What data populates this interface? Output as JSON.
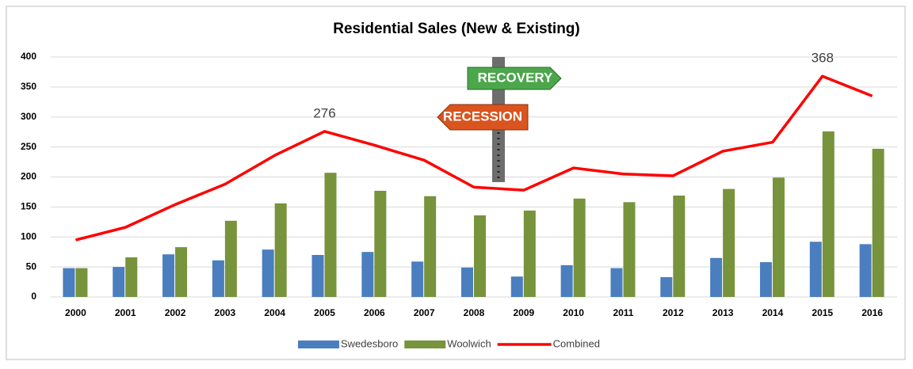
{
  "chart_data": {
    "type": "bar-line",
    "title": "Residential Sales (New & Existing)",
    "categories": [
      "2000",
      "2001",
      "2002",
      "2003",
      "2004",
      "2005",
      "2006",
      "2007",
      "2008",
      "2009",
      "2010",
      "2011",
      "2012",
      "2013",
      "2014",
      "2015",
      "2016"
    ],
    "series": [
      {
        "name": "Swedesboro",
        "type": "bar",
        "color": "#4a7ebf",
        "values": [
          48,
          50,
          71,
          61,
          79,
          70,
          75,
          59,
          49,
          34,
          53,
          48,
          33,
          65,
          58,
          92,
          88
        ]
      },
      {
        "name": "Woolwich",
        "type": "bar",
        "color": "#77933c",
        "values": [
          48,
          66,
          83,
          127,
          156,
          207,
          177,
          168,
          136,
          144,
          164,
          158,
          169,
          180,
          199,
          276,
          247
        ]
      },
      {
        "name": "Combined",
        "type": "line",
        "color": "#ff0000",
        "values": [
          95,
          116,
          154,
          188,
          236,
          276,
          253,
          228,
          183,
          178,
          215,
          205,
          202,
          243,
          258,
          368,
          335
        ],
        "value_labels": [
          null,
          null,
          null,
          null,
          null,
          "276",
          null,
          null,
          null,
          null,
          null,
          null,
          null,
          null,
          null,
          "368",
          null
        ]
      }
    ],
    "annotations": [
      "RECOVERY",
      "RECESSION"
    ],
    "ylim": [
      0,
      400
    ],
    "yticks": [
      0,
      50,
      100,
      150,
      200,
      250,
      300,
      350,
      400
    ],
    "grid": true,
    "legend": "bottom"
  }
}
